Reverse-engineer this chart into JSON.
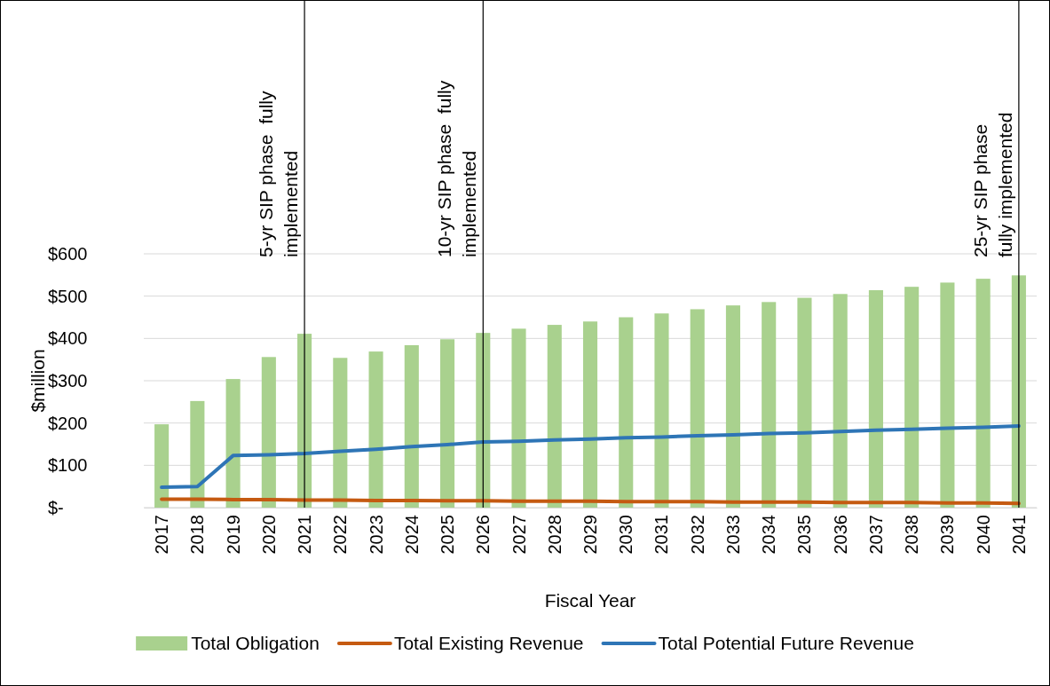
{
  "chart_data": {
    "type": "bar",
    "xlabel": "Fiscal Year",
    "ylabel": "$million",
    "categories": [
      "2017",
      "2018",
      "2019",
      "2020",
      "2021",
      "2022",
      "2023",
      "2024",
      "2025",
      "2026",
      "2027",
      "2028",
      "2029",
      "2030",
      "2031",
      "2032",
      "2033",
      "2034",
      "2035",
      "2036",
      "2037",
      "2038",
      "2039",
      "2040",
      "2041"
    ],
    "series": [
      {
        "name": "Total Obligation",
        "color": "#a9d18e",
        "values": [
          197,
          252,
          304,
          356,
          411,
          354,
          369,
          384,
          398,
          413,
          423,
          432,
          440,
          450,
          459,
          469,
          478,
          486,
          496,
          505,
          514,
          522,
          532,
          541,
          549
        ]
      },
      {
        "name": "Total Existing Revenue",
        "type": "line",
        "color": "#c55a11",
        "values": [
          20,
          20,
          19,
          19,
          18,
          18,
          17,
          17,
          16,
          16,
          15,
          15,
          15,
          14,
          14,
          14,
          13,
          13,
          13,
          12,
          12,
          12,
          11,
          11,
          10
        ]
      },
      {
        "name": "Total Potential Future Revenue",
        "type": "line",
        "color": "#2e75b6",
        "values": [
          48,
          50,
          123,
          125,
          128,
          133,
          138,
          144,
          149,
          155,
          157,
          160,
          162,
          165,
          167,
          170,
          172,
          175,
          177,
          180,
          183,
          185,
          188,
          190,
          193
        ]
      }
    ],
    "ylim": [
      0,
      600
    ],
    "yticks": [
      {
        "value": 0,
        "label": "$-"
      },
      {
        "value": 100,
        "label": "$100"
      },
      {
        "value": 200,
        "label": "$200"
      },
      {
        "value": 300,
        "label": "$300"
      },
      {
        "value": 400,
        "label": "$400"
      },
      {
        "value": 500,
        "label": "$500"
      },
      {
        "value": 600,
        "label": "$600"
      }
    ],
    "grid": "y",
    "legend": "bottom",
    "marker": "none",
    "line_style": "solid",
    "ref_lines": [
      {
        "axis": "x",
        "value": "2021",
        "label": "5-yr SIP phase  fully\nimplemented",
        "color": "#000000"
      },
      {
        "axis": "x",
        "value": "2026",
        "label": "10-yr SIP phase  fully\nimplemented",
        "color": "#000000"
      },
      {
        "axis": "x",
        "value": "2041",
        "label": "25-yr SIP phase\nfully implemented",
        "color": "#000000"
      }
    ]
  }
}
